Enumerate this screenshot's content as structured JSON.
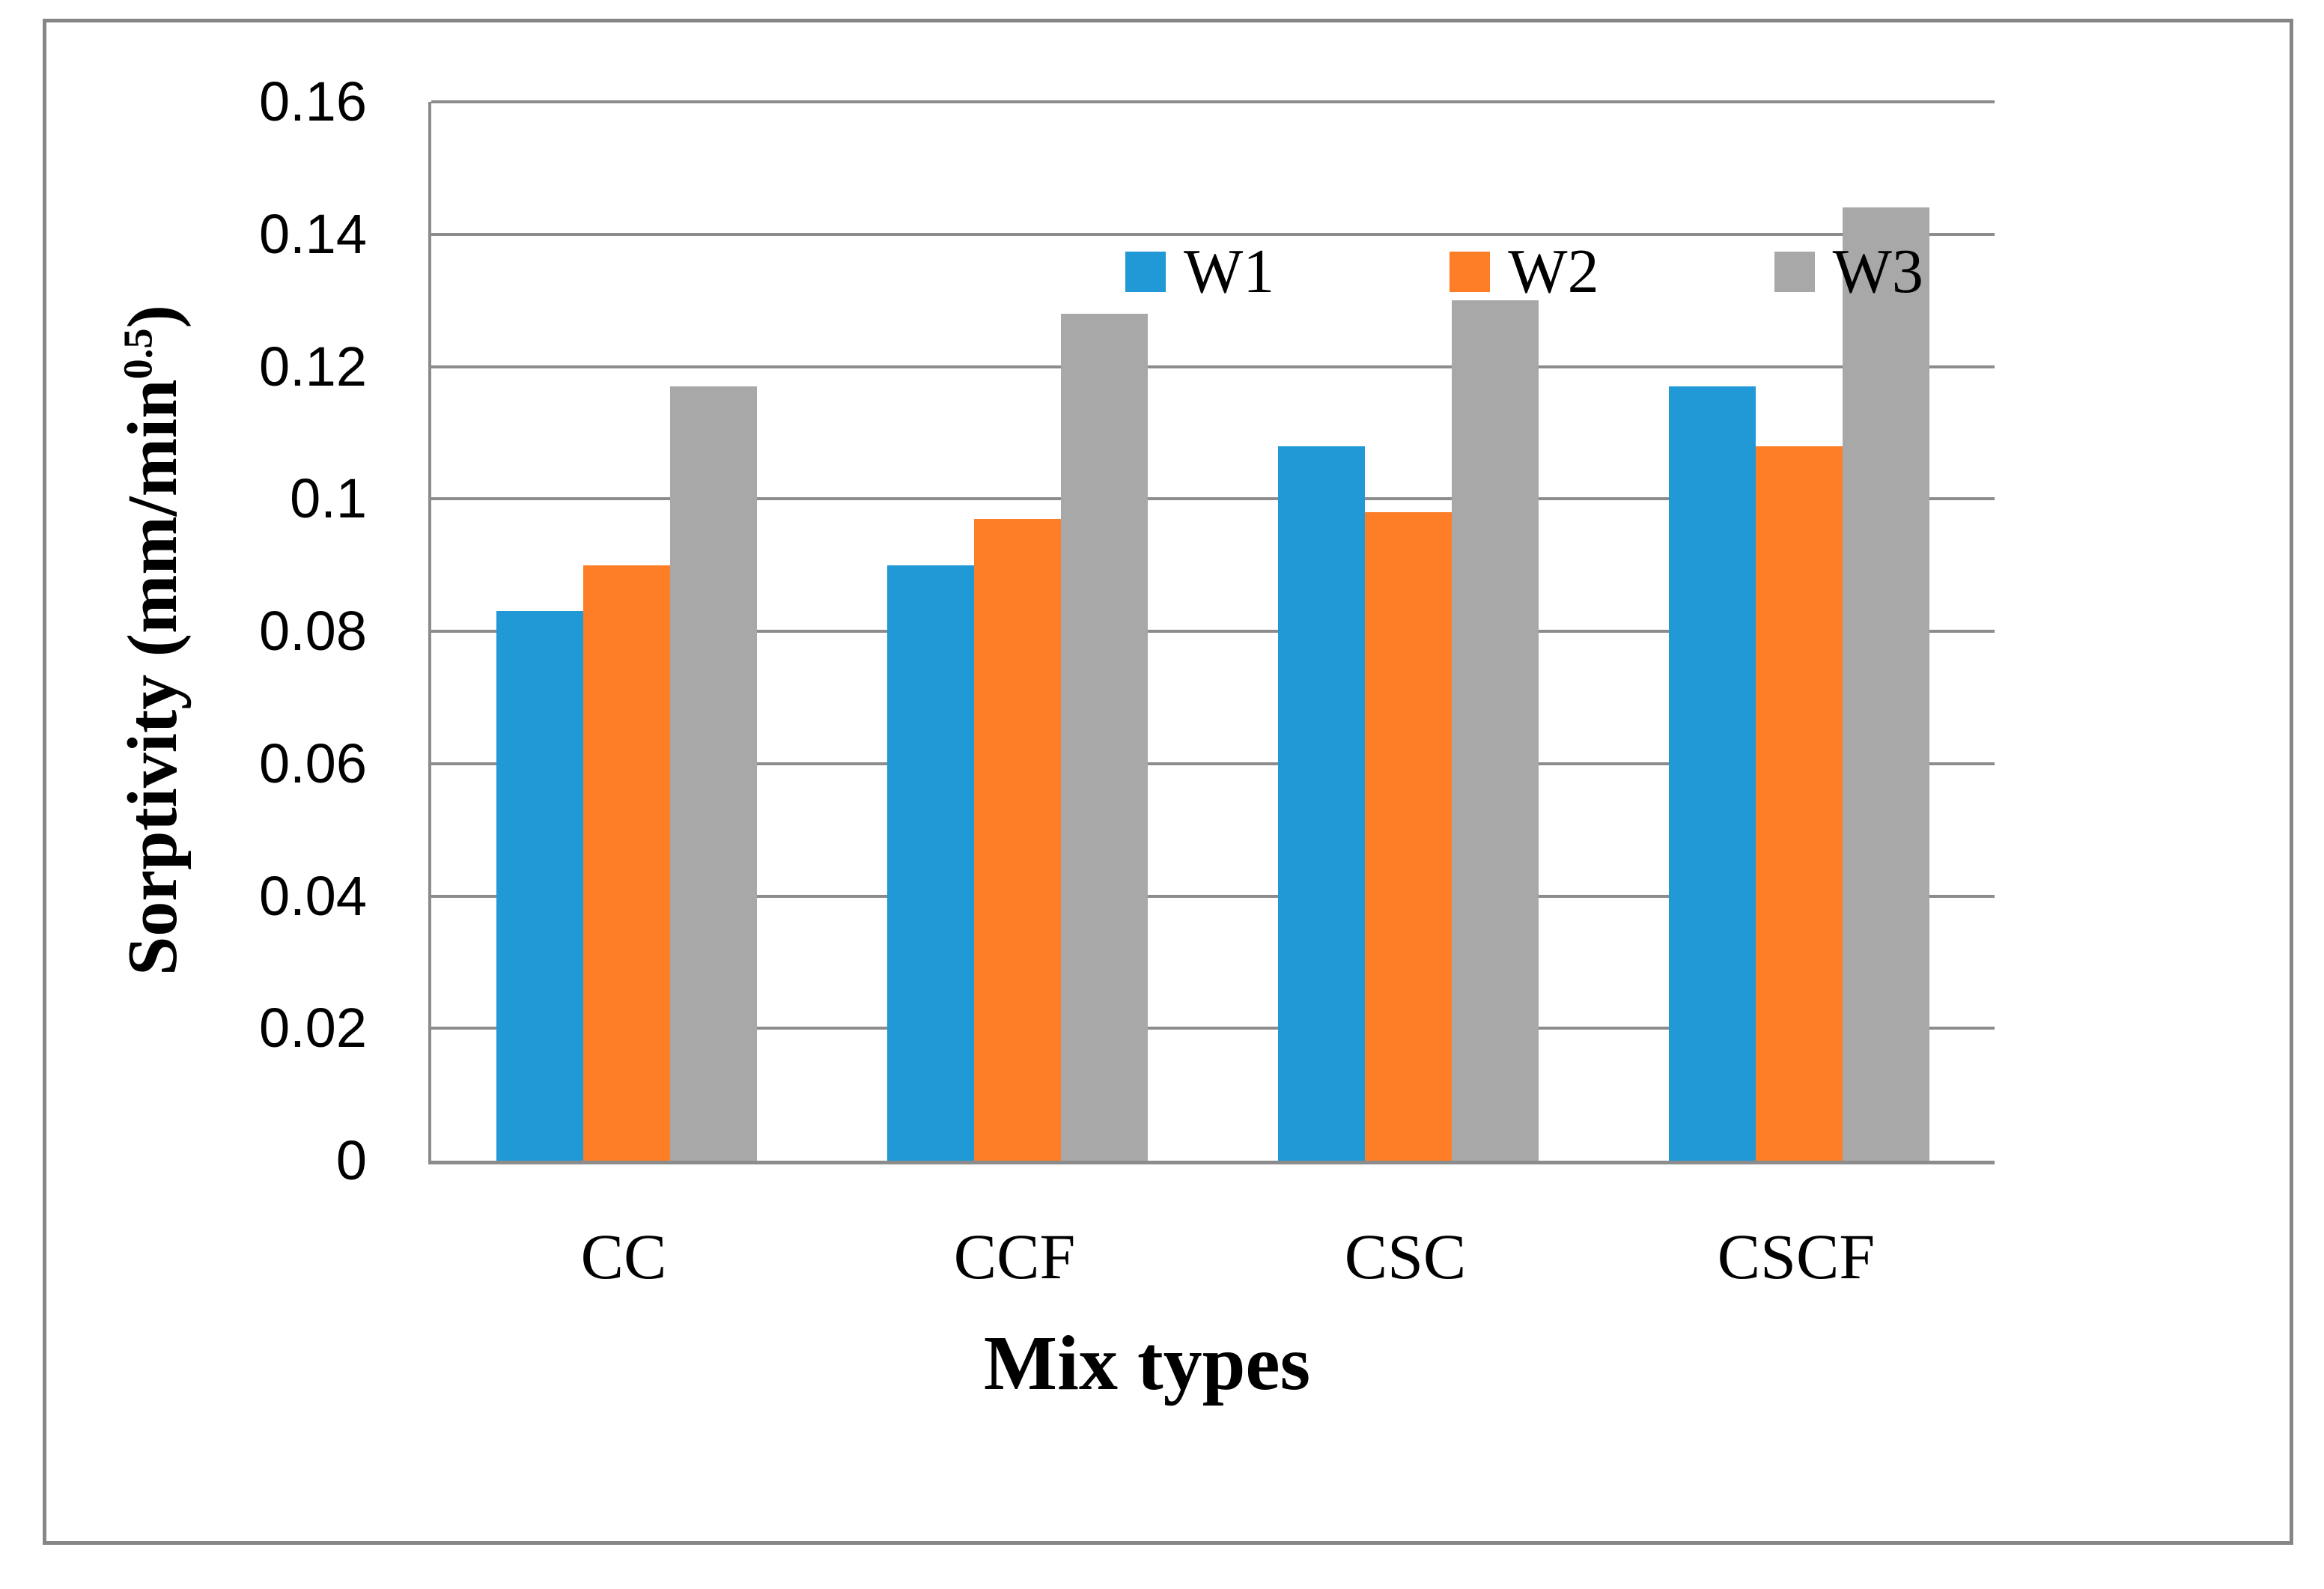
{
  "figure": {
    "background_color": "#FFFFFF",
    "outer_border_color": "#868686"
  },
  "chart_data": {
    "type": "bar",
    "title": "",
    "categories": [
      "CC",
      "CCF",
      "CSC",
      "CSCF"
    ],
    "series": [
      {
        "name": "W1",
        "color": "#2099D6",
        "values": [
          0.083,
          0.09,
          0.108,
          0.117
        ]
      },
      {
        "name": "W2",
        "color": "#FD7E27",
        "values": [
          0.09,
          0.097,
          0.098,
          0.108
        ]
      },
      {
        "name": "W3",
        "color": "#A8A8A8",
        "values": [
          0.117,
          0.128,
          0.13,
          0.144
        ]
      }
    ],
    "xlabel": "Mix types",
    "ylabel_prefix": "Sorptivity (mm/min",
    "ylabel_superscript": "0.5",
    "ylabel_suffix": ")",
    "ylim": [
      0,
      0.16
    ],
    "ytick_interval": 0.02,
    "ytick_labels": [
      "0.16",
      "0.14",
      "0.12",
      "0.1",
      "0.08",
      "0.06",
      "0.04",
      "0.02",
      "0"
    ],
    "grid": true,
    "gridline_color": "#8C8C8C",
    "axis_line_color": "#8C8C8C",
    "legend_position": "top-inside",
    "text_color": "#000000"
  }
}
